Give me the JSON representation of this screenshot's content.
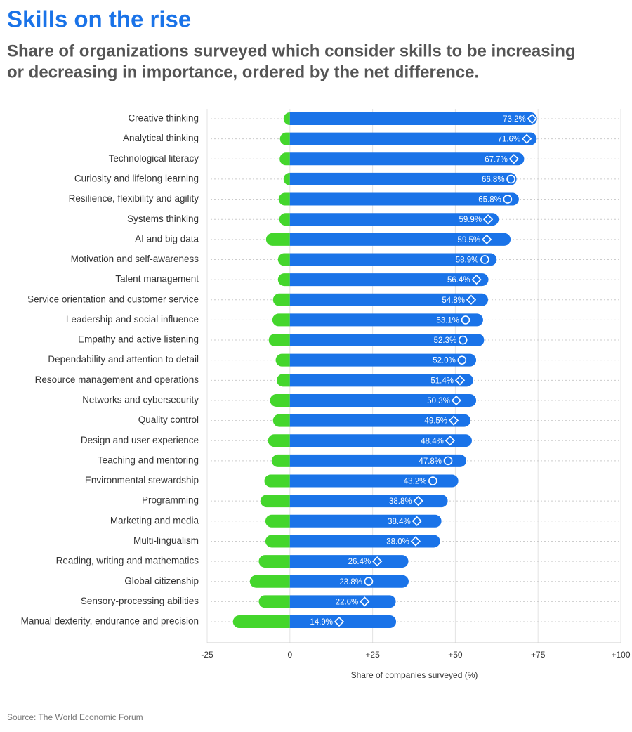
{
  "chart_data": {
    "type": "diverging_bar",
    "title": "Skills on the rise",
    "subtitle": [
      "Share of organizations surveyed which consider skills to be increasing",
      "or decreasing in importance, ordered by the net difference."
    ],
    "xlabel": "Share of companies surveyed (%)",
    "source": "Source: The World Economic Forum",
    "categories": [
      "Creative thinking",
      "Analytical thinking",
      "Technological literacy",
      "Curiosity and lifelong learning",
      "Resilience, flexibility and agility",
      "Systems thinking",
      "AI and big data",
      "Motivation and self-awareness",
      "Talent management",
      "Service orientation and customer service",
      "Leadership and social influence",
      "Empathy and active listening",
      "Dependability and attention to detail",
      "Resource management and operations",
      "Networks and cybersecurity",
      "Quality control",
      "Design and user experience",
      "Teaching and mentoring",
      "Environmental stewardship",
      "Programming",
      "Marketing and media",
      "Multi-lingualism",
      "Reading, writing and mathematics",
      "Global citizenship",
      "Sensory-processing abilities",
      "Manual dexterity, endurance and precision"
    ],
    "series": [
      {
        "color": "#44d62c",
        "values": [
          -1.5,
          -3,
          -3.1,
          -1.7,
          -3.4,
          -3.2,
          -7.2,
          -3.6,
          -3.6,
          -5.1,
          -5.3,
          -6.4,
          -4.3,
          -4,
          -6,
          -5.1,
          -6.6,
          -5.5,
          -7.7,
          -8.9,
          -7.4,
          -7.4,
          -9.4,
          -12.1,
          -9.4,
          -17.2
        ]
      },
      {
        "color": "#1a73e8",
        "values": [
          74.7,
          74.6,
          70.8,
          68.5,
          69.2,
          63.1,
          66.7,
          62.5,
          60,
          59.9,
          58.4,
          58.7,
          56.3,
          55.4,
          56.3,
          54.6,
          55,
          53.3,
          50.9,
          47.7,
          45.8,
          45.4,
          35.8,
          35.9,
          32,
          32.1
        ]
      }
    ],
    "net": {
      "color": "#ffffff",
      "values": [
        73.2,
        71.6,
        67.7,
        66.8,
        65.8,
        59.9,
        59.5,
        58.9,
        56.4,
        54.8,
        53.1,
        52.3,
        52.0,
        51.4,
        50.3,
        49.5,
        48.4,
        47.8,
        43.2,
        38.8,
        38.4,
        38.0,
        26.4,
        23.8,
        22.6,
        14.9
      ],
      "value_labels": [
        "73.2%",
        "71.6%",
        "67.7%",
        "66.8%",
        "65.8%",
        "59.9%",
        "59.5%",
        "58.9%",
        "56.4%",
        "54.8%",
        "53.1%",
        "52.3%",
        "52.0%",
        "51.4%",
        "50.3%",
        "49.5%",
        "48.4%",
        "47.8%",
        "43.2%",
        "38.8%",
        "38.4%",
        "38.0%",
        "26.4%",
        "23.8%",
        "22.6%",
        "14.9%"
      ],
      "markers": [
        "diamond",
        "diamond",
        "diamond",
        "circle",
        "circle",
        "diamond",
        "diamond",
        "circle",
        "diamond",
        "diamond",
        "circle",
        "circle",
        "circle",
        "diamond",
        "diamond",
        "diamond",
        "diamond",
        "circle",
        "circle",
        "diamond",
        "diamond",
        "diamond",
        "diamond",
        "circle",
        "diamond",
        "diamond"
      ]
    },
    "xlim": [
      -25,
      100
    ],
    "xticks": [
      -25,
      0,
      {
        "value": 25,
        "label": "+25"
      },
      {
        "value": 50,
        "label": "+50"
      },
      {
        "value": 75,
        "label": "+75"
      },
      {
        "value": 100,
        "label": "+100"
      }
    ],
    "grid": true
  }
}
